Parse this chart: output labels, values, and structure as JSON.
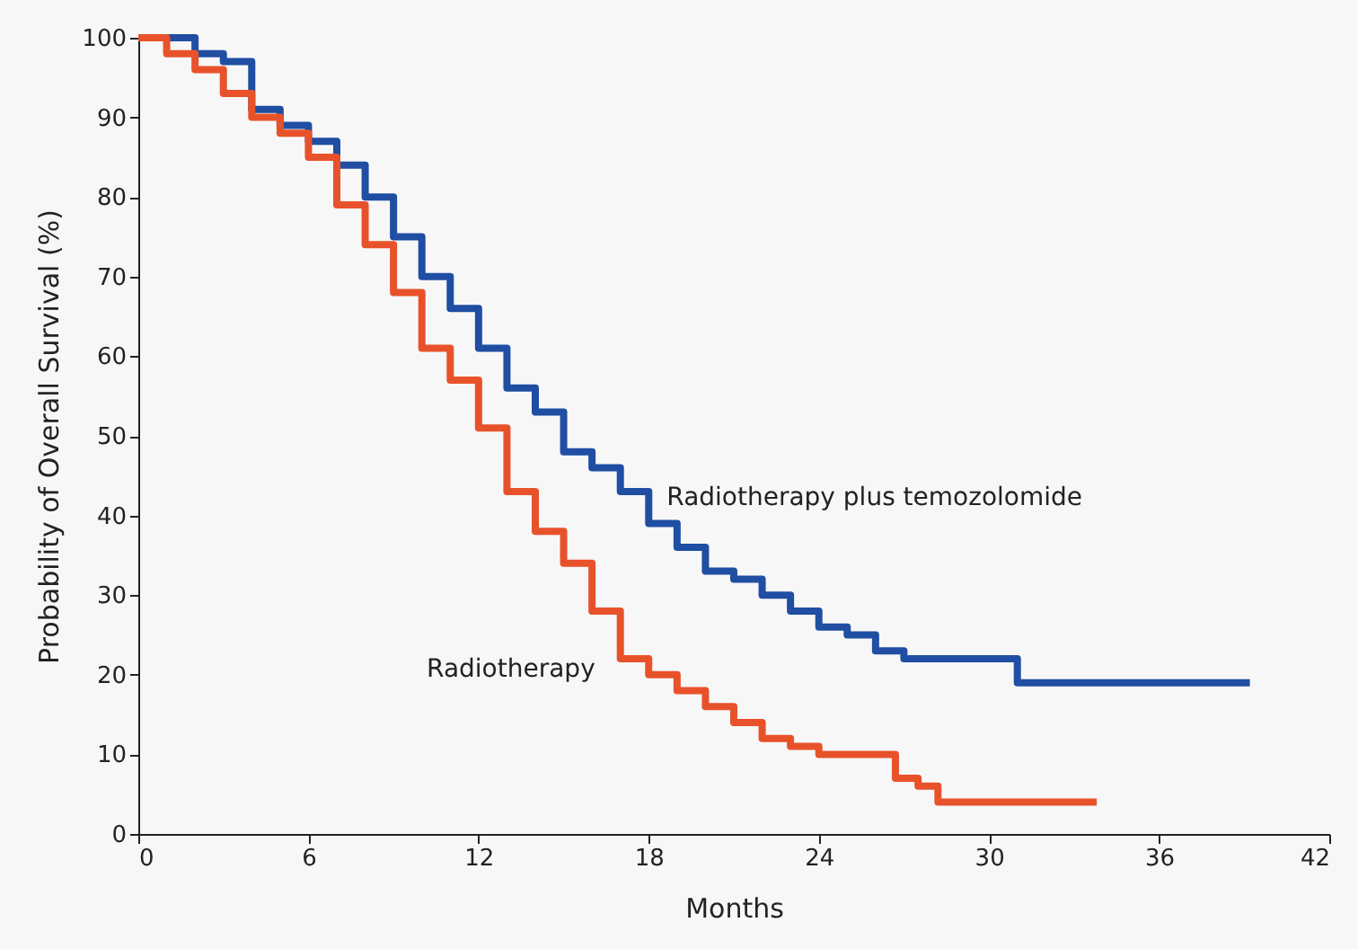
{
  "chart_data": {
    "type": "step",
    "xlabel": "Months",
    "ylabel": "Probability of Overall Survival (%)",
    "xlim": [
      0,
      42
    ],
    "xticks": [
      0,
      6,
      12,
      18,
      24,
      30,
      36,
      42
    ],
    "ylim": [
      0,
      100
    ],
    "yticks": [
      0,
      10,
      20,
      30,
      40,
      50,
      60,
      70,
      80,
      90,
      100
    ],
    "marker": "none",
    "line_style": "solid",
    "series": [
      {
        "name": "Radiotherapy plus temozolomide",
        "color": "#1f4ea3",
        "x": [
          0,
          1,
          2,
          3,
          4,
          5,
          6,
          7,
          8,
          9,
          10,
          11,
          12,
          13,
          14,
          15,
          16,
          17,
          18,
          19,
          20,
          21,
          22,
          23,
          24,
          25,
          26,
          27,
          28,
          30.5,
          31,
          39.2
        ],
        "values": [
          100,
          100,
          98,
          97,
          91,
          89,
          87,
          84,
          80,
          75,
          70,
          66,
          61,
          56,
          53,
          48,
          46,
          43,
          39,
          36,
          33,
          32,
          30,
          28,
          26,
          25,
          23,
          22,
          22,
          22,
          19,
          19
        ]
      },
      {
        "name": "Radiotherapy",
        "color": "#e8522a",
        "x": [
          0,
          1,
          2,
          3,
          4,
          5,
          6,
          7,
          8,
          9,
          10,
          11,
          12,
          13,
          14,
          15,
          16,
          17,
          18,
          19,
          20,
          21,
          22,
          23,
          24,
          26,
          26.7,
          27.5,
          28.2,
          33.8
        ],
        "values": [
          100,
          98,
          96,
          93,
          90,
          88,
          85,
          79,
          74,
          68,
          61,
          57,
          51,
          43,
          38,
          34,
          28,
          22,
          20,
          18,
          16,
          14,
          12,
          11,
          10,
          10,
          7,
          6,
          4,
          4
        ]
      }
    ]
  }
}
